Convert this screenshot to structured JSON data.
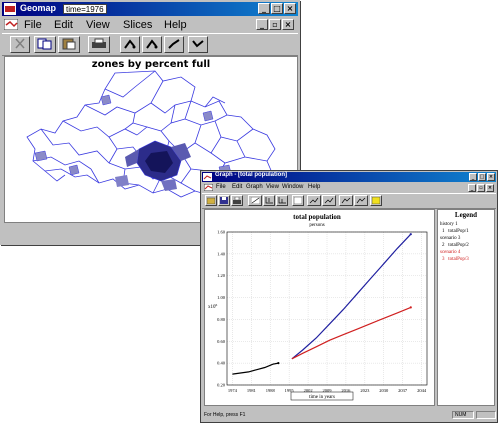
{
  "geomap": {
    "title": "Geomap",
    "time_value": "time=1976",
    "menu": [
      "File",
      "Edit",
      "View",
      "Slices",
      "Help"
    ],
    "map_title": "zones by percent full",
    "colors": {
      "zone_stroke": "#3a3ae0",
      "dense_fill": "#1a1a6a"
    },
    "toolbar_icons": [
      "cut-icon",
      "copy-icon",
      "paste-icon",
      "print-icon",
      "select-tool-icon",
      "move-tool-icon",
      "pen-tool-icon",
      "zone-tool-icon"
    ]
  },
  "graph_window": {
    "title": "Graph - [total population]",
    "menu": [
      "File",
      "Edit",
      "Graph",
      "View",
      "Window",
      "Help"
    ],
    "toolbar_icons": [
      "open-icon",
      "save-icon",
      "print-icon",
      "zoom-icon",
      "axis-icon",
      "chart-icon",
      "table-icon",
      "legend-icon",
      "grid-icon",
      "copy-icon",
      "help-icon"
    ],
    "status_text": "For Help, press F1",
    "status_panel": "NUM"
  },
  "legend": {
    "title": "Legend",
    "entries": [
      {
        "group": "history 1",
        "index": "1",
        "label": "totalPop/1",
        "color": "#000000"
      },
      {
        "group": "scenario 3",
        "index": "2",
        "label": "totalPop/2",
        "color": "#2020a0"
      },
      {
        "group": "scenario 4",
        "index": "3",
        "label": "totalPop/3",
        "color": "#d02020"
      }
    ]
  },
  "chart_data": {
    "type": "line",
    "title": "total population",
    "subtitle": "persons",
    "xlabel": "time in years",
    "ylabel": "x10^6",
    "ylabel_base": "x10",
    "ylabel_exp": "6",
    "xlim": [
      1972,
      2046
    ],
    "ylim": [
      0.2,
      1.6
    ],
    "x_ticks": [
      "1974",
      "1981",
      "1988",
      "1995",
      "2002",
      "2009",
      "2016",
      "2023",
      "2030",
      "2037",
      "2044"
    ],
    "y_ticks": [
      "0.20",
      "0.40",
      "0.60",
      "0.80",
      "1.00",
      "1.20",
      "1.40",
      "1.60"
    ],
    "series": [
      {
        "color": "#000000",
        "x": [
          1974,
          1977,
          1980,
          1983,
          1986,
          1989,
          1991
        ],
        "y": [
          0.3,
          0.31,
          0.32,
          0.34,
          0.36,
          0.39,
          0.4
        ]
      },
      {
        "color": "#2020a0",
        "x": [
          1996,
          2000,
          2005,
          2010,
          2015,
          2020,
          2025,
          2030,
          2035,
          2040
        ],
        "y": [
          0.44,
          0.52,
          0.63,
          0.76,
          0.89,
          1.03,
          1.17,
          1.31,
          1.45,
          1.58
        ]
      },
      {
        "color": "#d02020",
        "x": [
          1996,
          2000,
          2005,
          2010,
          2015,
          2020,
          2025,
          2030,
          2035,
          2040
        ],
        "y": [
          0.44,
          0.49,
          0.55,
          0.61,
          0.66,
          0.71,
          0.76,
          0.81,
          0.86,
          0.91
        ]
      }
    ]
  }
}
